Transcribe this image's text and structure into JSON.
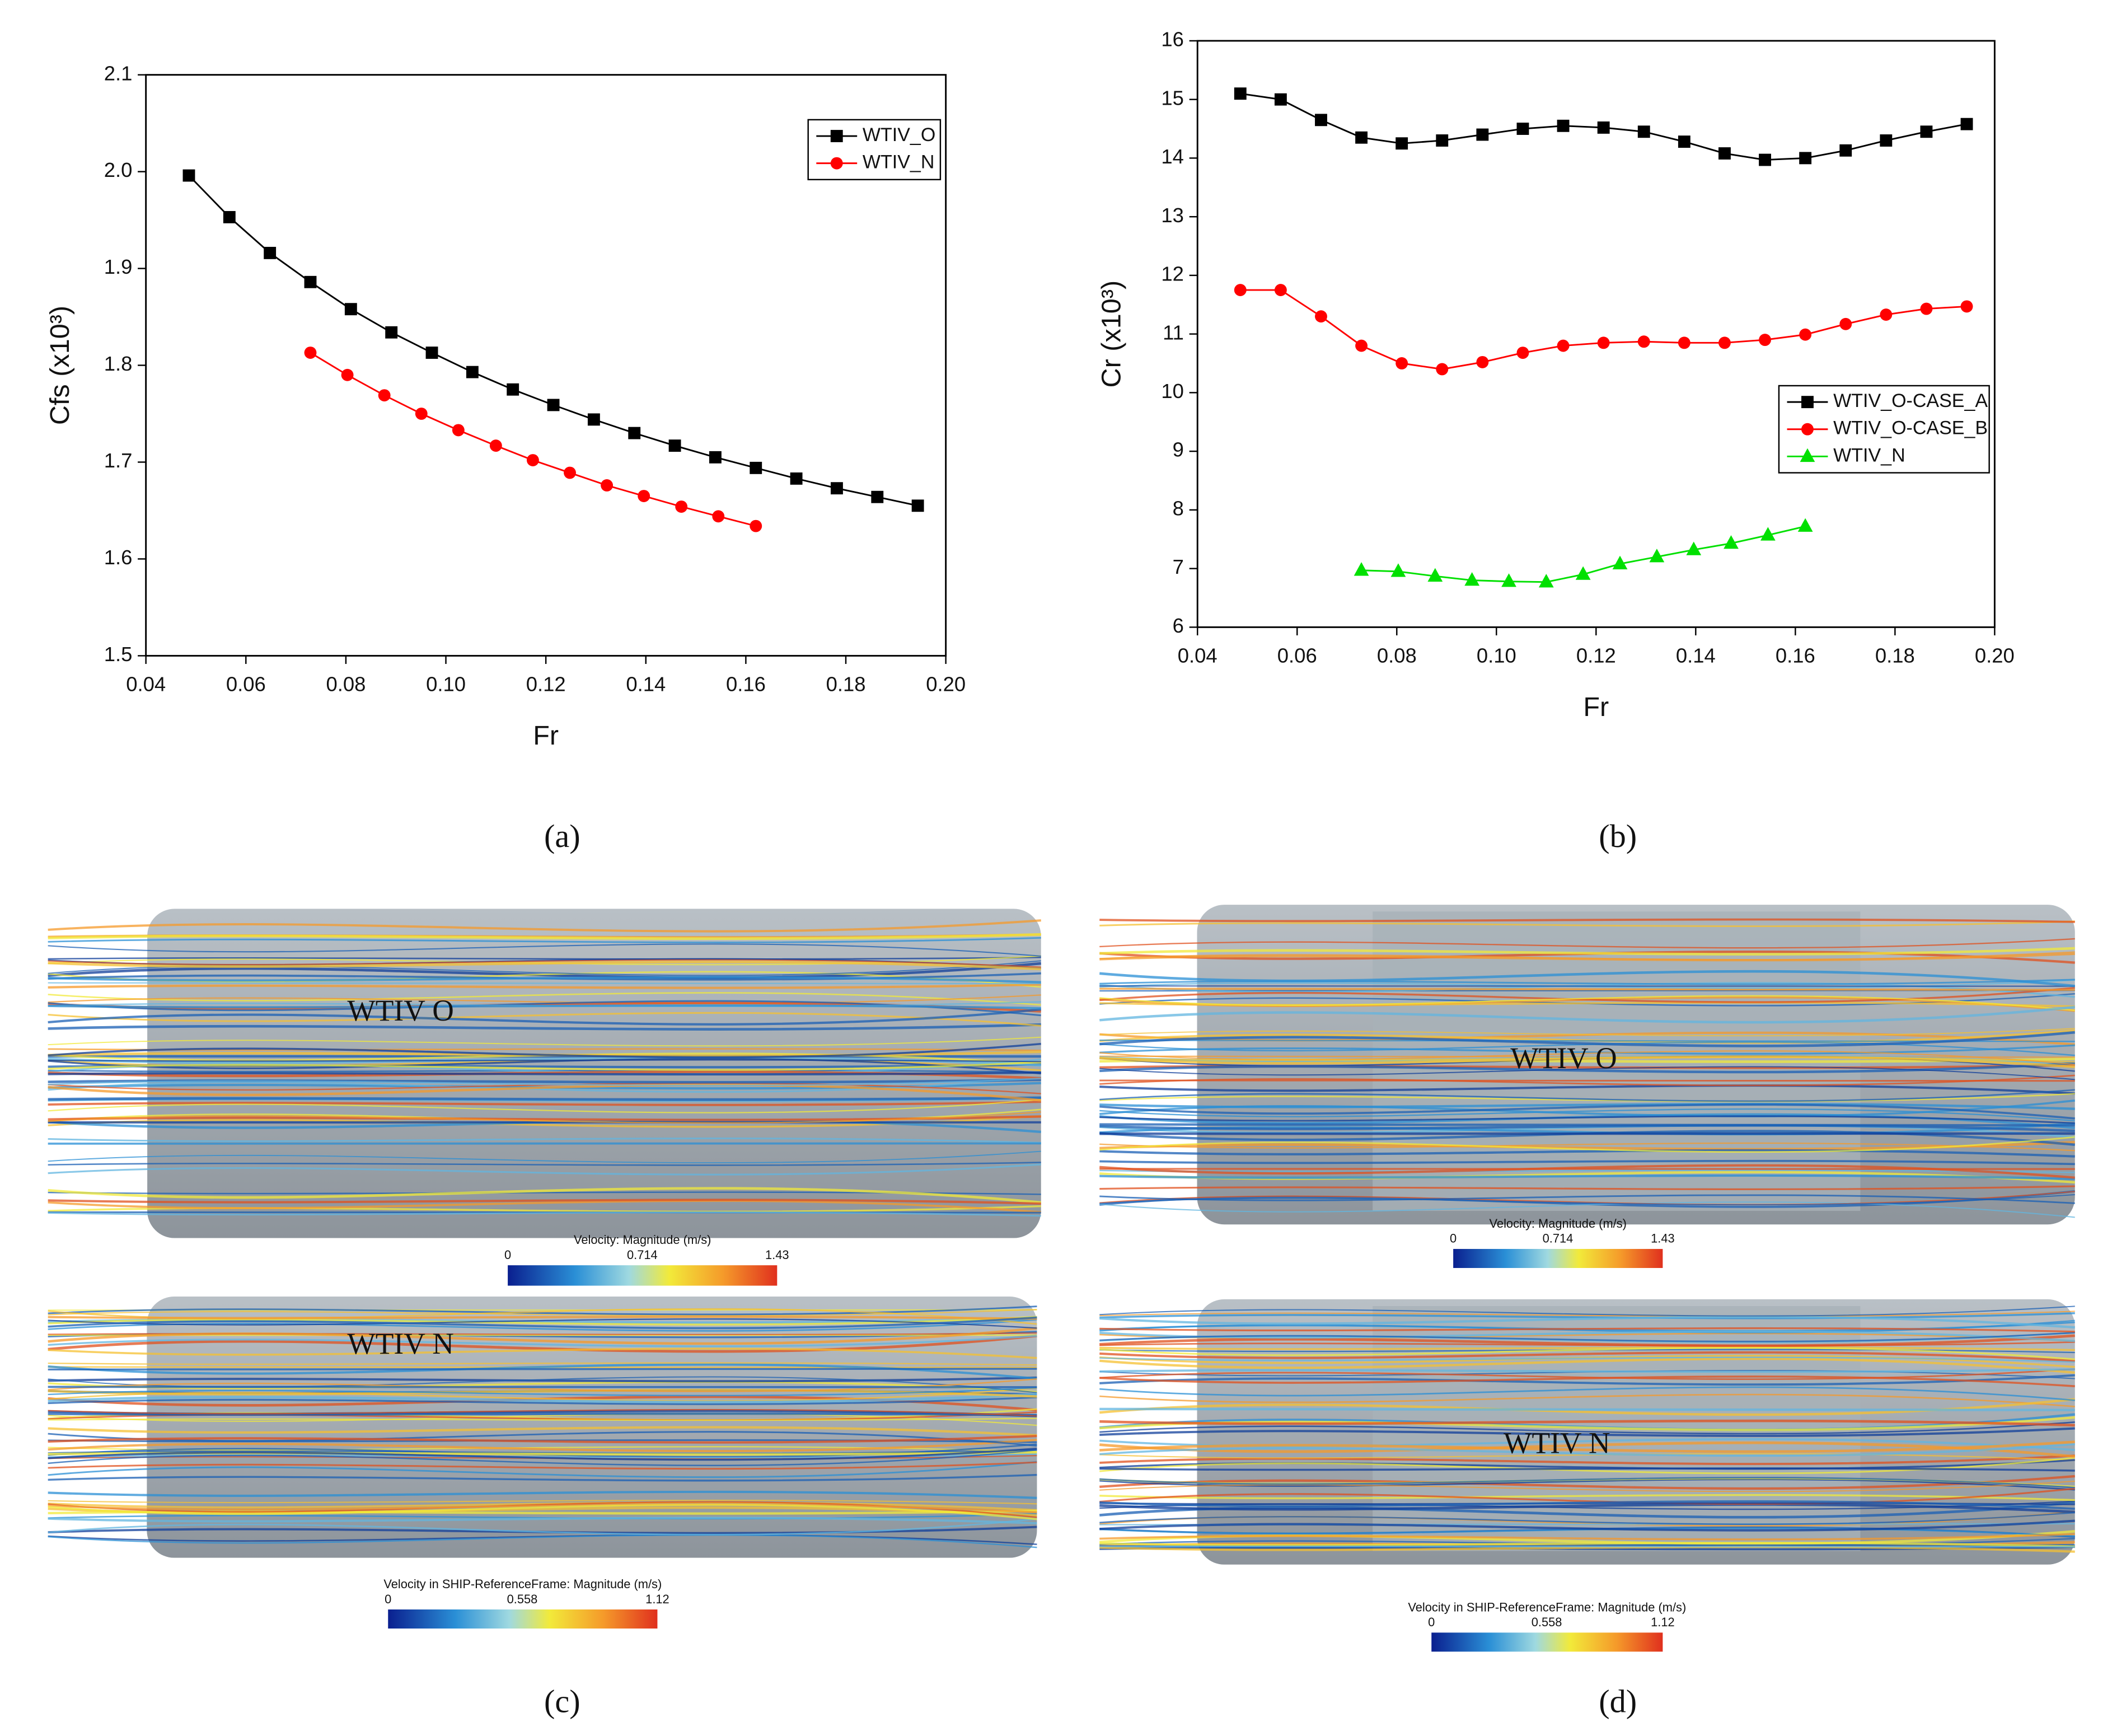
{
  "chart_data": [
    {
      "type": "line",
      "panel_label": "(a)",
      "xlabel": "Fr",
      "ylabel": "Cfs (x10³)",
      "xlim": [
        0.04,
        0.2
      ],
      "xticks": [
        0.04,
        0.06,
        0.08,
        {
          "value": 0.1,
          "label": "0.10"
        },
        0.12,
        0.14,
        0.16,
        0.18,
        {
          "value": 0.2,
          "label": "0.20"
        }
      ],
      "ylim": [
        1.5,
        2.1
      ],
      "yticks": [
        1.5,
        1.6,
        1.7,
        1.8,
        1.9,
        {
          "value": 2,
          "label": "2.0"
        },
        2.1
      ],
      "legend": "upper right",
      "series": [
        {
          "name": "WTIV_O",
          "color": "#000000",
          "marker": "square",
          "x": [
            0.0486,
            0.0567,
            0.0648,
            0.0729,
            0.081,
            0.0891,
            0.0972,
            0.1053,
            0.1134,
            0.1215,
            0.1296,
            0.1377,
            0.1458,
            0.1539,
            0.162,
            0.1701,
            0.1782,
            0.1863,
            0.1944
          ],
          "values": [
            1.996,
            1.953,
            1.916,
            1.886,
            1.858,
            1.834,
            1.813,
            1.793,
            1.775,
            1.759,
            1.744,
            1.73,
            1.717,
            1.705,
            1.694,
            1.683,
            1.673,
            1.664,
            1.655
          ]
        },
        {
          "name": "WTIV_N",
          "color": "#ff0000",
          "marker": "circle",
          "x": [
            0.0729,
            0.0803,
            0.0877,
            0.0951,
            0.1025,
            0.11,
            0.1174,
            0.1248,
            0.1322,
            0.1396,
            0.1471,
            0.1545,
            0.162
          ],
          "values": [
            1.813,
            1.79,
            1.769,
            1.75,
            1.733,
            1.717,
            1.702,
            1.689,
            1.676,
            1.665,
            1.654,
            1.644,
            1.634
          ]
        }
      ]
    },
    {
      "type": "line",
      "panel_label": "(b)",
      "xlabel": "Fr",
      "ylabel": "Cr (x10³)",
      "xlim": [
        0.04,
        0.2
      ],
      "xticks": [
        0.04,
        0.06,
        0.08,
        {
          "value": 0.1,
          "label": "0.10"
        },
        0.12,
        0.14,
        0.16,
        0.18,
        {
          "value": 0.2,
          "label": "0.20"
        }
      ],
      "ylim": [
        6,
        16
      ],
      "yticks": [
        6,
        7,
        8,
        9,
        10,
        11,
        12,
        13,
        14,
        15,
        16
      ],
      "legend": "center right",
      "series": [
        {
          "name": "WTIV_O-CASE_A",
          "color": "#000000",
          "marker": "square",
          "x": [
            0.0486,
            0.0567,
            0.0648,
            0.0729,
            0.081,
            0.0891,
            0.0972,
            0.1053,
            0.1134,
            0.1215,
            0.1296,
            0.1377,
            0.1458,
            0.1539,
            0.162,
            0.1701,
            0.1782,
            0.1863,
            0.1944
          ],
          "values": [
            15.1,
            15.0,
            14.65,
            14.35,
            14.25,
            14.3,
            14.4,
            14.5,
            14.55,
            14.52,
            14.45,
            14.28,
            14.08,
            13.97,
            14.0,
            14.13,
            14.3,
            14.45,
            14.58
          ]
        },
        {
          "name": "WTIV_O-CASE_B",
          "color": "#ff0000",
          "marker": "circle",
          "x": [
            0.0486,
            0.0567,
            0.0648,
            0.0729,
            0.081,
            0.0891,
            0.0972,
            0.1053,
            0.1134,
            0.1215,
            0.1296,
            0.1377,
            0.1458,
            0.1539,
            0.162,
            0.1701,
            0.1782,
            0.1863,
            0.1944
          ],
          "values": [
            11.75,
            11.75,
            11.3,
            10.8,
            10.5,
            10.4,
            10.52,
            10.68,
            10.8,
            10.85,
            10.87,
            10.85,
            10.85,
            10.9,
            10.99,
            11.17,
            11.33,
            11.43,
            11.47
          ]
        },
        {
          "name": "WTIV_N",
          "color": "#00e000",
          "marker": "triangle",
          "x": [
            0.0729,
            0.0803,
            0.0877,
            0.0951,
            0.1025,
            0.11,
            0.1174,
            0.1248,
            0.1322,
            0.1396,
            0.1471,
            0.1545,
            0.162
          ],
          "values": [
            6.97,
            6.95,
            6.87,
            6.8,
            6.78,
            6.77,
            6.9,
            7.08,
            7.2,
            7.32,
            7.43,
            7.57,
            7.72
          ]
        }
      ]
    }
  ],
  "figures": [
    {
      "label": "(c)",
      "views": [
        {
          "annotation": "WTIV O",
          "colorbar": {
            "title": "Velocity: Magnitude (m/s)",
            "ticks": [
              0,
              0.714,
              1.43
            ]
          }
        },
        {
          "annotation": "WTIV N",
          "colorbar": {
            "title": "Velocity in SHIP-ReferenceFrame: Magnitude (m/s)",
            "ticks": [
              0,
              0.558,
              1.12
            ]
          }
        }
      ]
    },
    {
      "label": "(d)",
      "views": [
        {
          "annotation": "WTIV O",
          "colorbar": {
            "title": "Velocity: Magnitude (m/s)",
            "ticks": [
              0,
              0.714,
              1.43
            ]
          }
        },
        {
          "annotation": "WTIV N",
          "colorbar": {
            "title": "Velocity in SHIP-ReferenceFrame: Magnitude (m/s)",
            "ticks": [
              0,
              0.558,
              1.12
            ]
          }
        }
      ]
    }
  ]
}
